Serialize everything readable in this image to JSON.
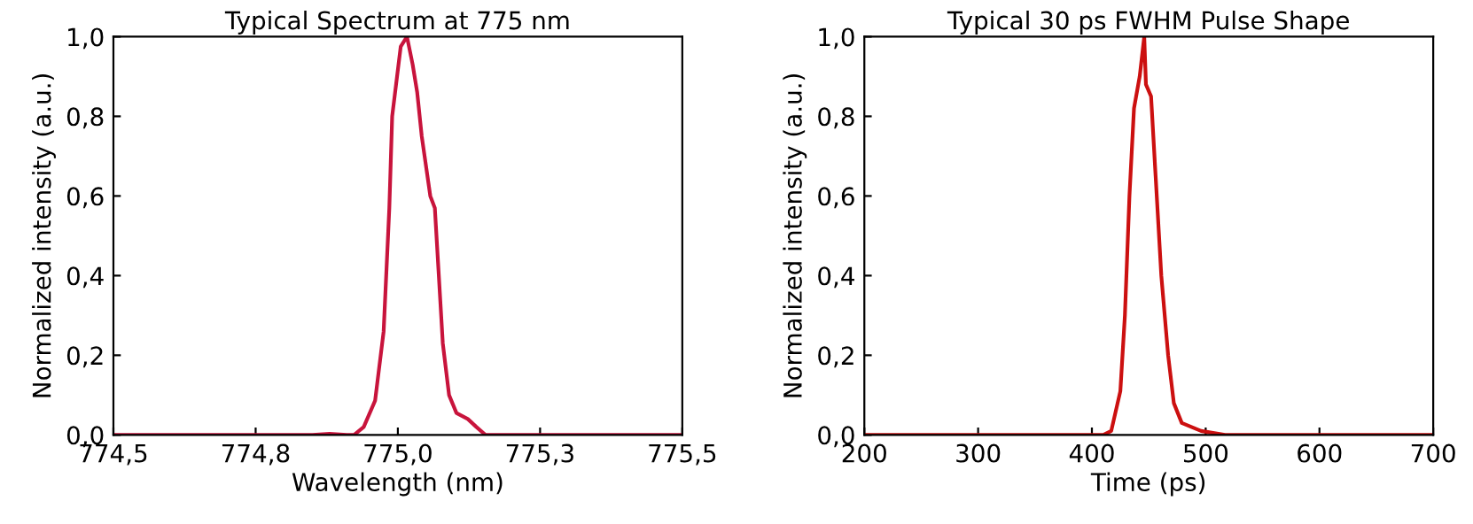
{
  "chart_data": [
    {
      "type": "line",
      "title": "Typical Spectrum at 775 nm",
      "xlabel": "Wavelength (nm)",
      "ylabel": "Normalized intensity (a.u.)",
      "xlim": [
        774.5,
        775.5
      ],
      "xticks": [
        {
          "value": 774.5,
          "label": "774,5"
        },
        {
          "value": 774.75,
          "label": "774,8"
        },
        {
          "value": 775.0,
          "label": "775,0"
        },
        {
          "value": 775.25,
          "label": "775,3"
        },
        {
          "value": 775.5,
          "label": "775,5"
        }
      ],
      "ylim": [
        0,
        1
      ],
      "yticks": [
        {
          "value": 0,
          "label": "0,0"
        },
        {
          "value": 0.2,
          "label": "0,2"
        },
        {
          "value": 0.4,
          "label": "0,4"
        },
        {
          "value": 0.6,
          "label": "0,6"
        },
        {
          "value": 0.8,
          "label": "0,8"
        },
        {
          "value": 1,
          "label": "1,0"
        }
      ],
      "grid": false,
      "legend": false,
      "series": [
        {
          "color": "#c8143c",
          "x": [
            774.5,
            774.85,
            774.88,
            774.91,
            774.923,
            774.94,
            774.96,
            774.975,
            774.985,
            774.99,
            775.005,
            775.016,
            775.026,
            775.034,
            775.042,
            775.057,
            775.065,
            775.072,
            775.079,
            775.09,
            775.103,
            775.123,
            775.138,
            775.154,
            775.2,
            775.5
          ],
          "values": [
            0,
            0,
            0.003,
            0,
            0,
            0.02,
            0.086,
            0.26,
            0.57,
            0.8,
            0.975,
            1.0,
            0.93,
            0.86,
            0.75,
            0.6,
            0.57,
            0.4,
            0.23,
            0.1,
            0.055,
            0.04,
            0.02,
            0,
            0,
            0
          ]
        }
      ]
    },
    {
      "type": "line",
      "title": "Typical 30 ps FWHM Pulse Shape",
      "xlabel": "Time (ps)",
      "ylabel": "Normalized intensity (a.u.)",
      "xlim": [
        200,
        700
      ],
      "xticks": [
        200,
        300,
        400,
        500,
        600,
        700
      ],
      "ylim": [
        0,
        1
      ],
      "yticks": [
        {
          "value": 0,
          "label": "0,0"
        },
        {
          "value": 0.2,
          "label": "0,2"
        },
        {
          "value": 0.4,
          "label": "0,4"
        },
        {
          "value": 0.6,
          "label": "0,6"
        },
        {
          "value": 0.8,
          "label": "0,8"
        },
        {
          "value": 1,
          "label": "1,0"
        }
      ],
      "grid": false,
      "legend": false,
      "series": [
        {
          "color": "#cc1010",
          "x": [
            200,
            410,
            417,
            425,
            429,
            433,
            437,
            442,
            446,
            447.5,
            452,
            456,
            461,
            467,
            472,
            479,
            496,
            517,
            700
          ],
          "values": [
            0,
            0,
            0.01,
            0.11,
            0.3,
            0.6,
            0.82,
            0.9,
            1.0,
            0.88,
            0.85,
            0.65,
            0.4,
            0.2,
            0.08,
            0.03,
            0.01,
            0,
            0
          ]
        }
      ]
    }
  ]
}
